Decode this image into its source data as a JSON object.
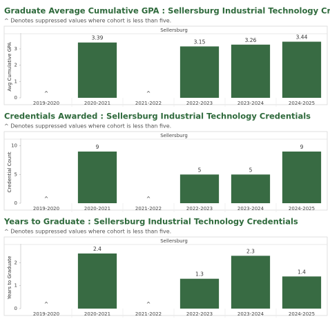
{
  "chart_data": [
    {
      "type": "bar",
      "title": "Graduate Average Cumulative GPA : Sellersburg Industrial Technology Credentials",
      "subtitle": "^ Denotes suppressed values where cohort is less than five.",
      "panel_label": "Sellersburg",
      "y_label": "Avg Cumulative GPA",
      "categories": [
        "2019-2020",
        "2020-2021",
        "2021-2022",
        "2022-2023",
        "2023-2024",
        "2024-2025"
      ],
      "values": [
        null,
        3.39,
        null,
        3.15,
        3.26,
        3.44
      ],
      "value_labels": [
        "^",
        "3.39",
        "^",
        "3.15",
        "3.26",
        "3.44"
      ],
      "color": "#386b43",
      "ylim": [
        0,
        3.8
      ],
      "yticks": [
        0,
        1,
        2,
        3
      ],
      "grid": false
    },
    {
      "type": "bar",
      "title": "Credentials Awarded : Sellersburg Industrial Technology Credentials",
      "subtitle": "^ Denotes suppressed values where cohort is less than five.",
      "panel_label": "Sellersburg",
      "y_label": "Credential Count",
      "categories": [
        "2019-2020",
        "2020-2021",
        "2021-2022",
        "2022-2023",
        "2023-2024",
        "2024-2025"
      ],
      "values": [
        null,
        9,
        null,
        5,
        5,
        9
      ],
      "value_labels": [
        "^",
        "9",
        "^",
        "5",
        "5",
        "9"
      ],
      "color": "#386b43",
      "ylim": [
        0,
        10.8
      ],
      "yticks": [
        0,
        5,
        10
      ],
      "grid": false
    },
    {
      "type": "bar",
      "title": "Years to Graduate : Sellersburg Industrial Technology Credentials",
      "subtitle": "^ Denotes suppressed values where cohort is less than five.",
      "panel_label": "Sellersburg",
      "y_label": "Years to Graduate",
      "categories": [
        "2019-2020",
        "2020-2021",
        "2021-2022",
        "2022-2023",
        "2023-2024",
        "2024-2025"
      ],
      "values": [
        null,
        2.4,
        null,
        1.3,
        2.3,
        1.4
      ],
      "value_labels": [
        "^",
        "2.4",
        "^",
        "1.3",
        "2.3",
        "1.4"
      ],
      "color": "#386b43",
      "ylim": [
        0,
        2.7
      ],
      "yticks": [
        0,
        1,
        2
      ],
      "grid": false
    }
  ]
}
